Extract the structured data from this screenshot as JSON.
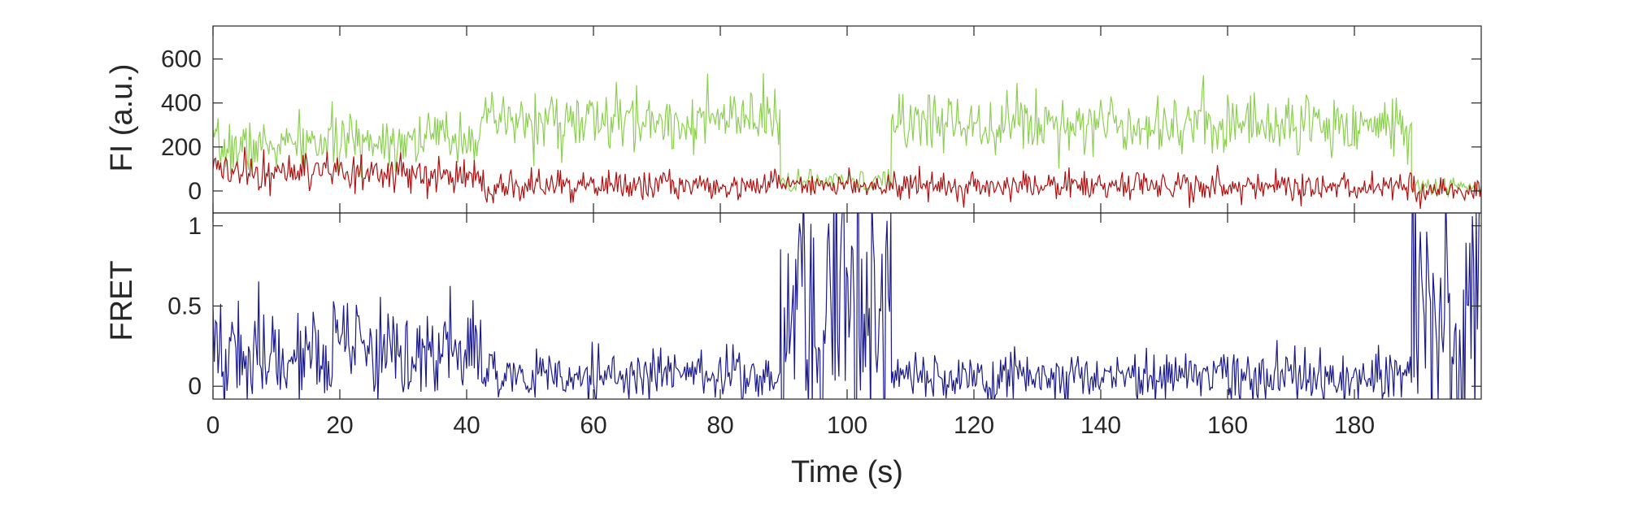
{
  "chart_data": [
    {
      "type": "line",
      "panel": "top",
      "title": "",
      "ylabel": "FI (a.u.)",
      "xlabel": "",
      "xlim": [
        0,
        200
      ],
      "ylim": [
        -100,
        750
      ],
      "yticks": [
        0,
        200,
        400,
        600
      ],
      "grid": false,
      "series": [
        {
          "color": "#8cd050",
          "segments": [
            {
              "t0": 0,
              "t1": 43,
              "mean_start": 190,
              "mean_end": 260,
              "noise": 60
            },
            {
              "t0": 43,
              "t1": 89.5,
              "mean_start": 310,
              "mean_end": 320,
              "noise": 70
            },
            {
              "t0": 89.5,
              "t1": 107,
              "mean_start": 40,
              "mean_end": 40,
              "noise": 25
            },
            {
              "t0": 107,
              "t1": 189,
              "mean_start": 320,
              "mean_end": 300,
              "noise": 70
            },
            {
              "t0": 189,
              "t1": 200,
              "mean_start": 20,
              "mean_end": 20,
              "noise": 20
            }
          ]
        },
        {
          "color": "#b01010",
          "segments": [
            {
              "t0": 0,
              "t1": 43,
              "mean_start": 90,
              "mean_end": 60,
              "noise": 45
            },
            {
              "t0": 43,
              "t1": 89.5,
              "mean_start": 20,
              "mean_end": 30,
              "noise": 35
            },
            {
              "t0": 89.5,
              "t1": 107,
              "mean_start": 30,
              "mean_end": 30,
              "noise": 25
            },
            {
              "t0": 107,
              "t1": 189,
              "mean_start": 25,
              "mean_end": 20,
              "noise": 35
            },
            {
              "t0": 189,
              "t1": 200,
              "mean_start": 0,
              "mean_end": 0,
              "noise": 25
            }
          ]
        }
      ]
    },
    {
      "type": "line",
      "panel": "bottom",
      "title": "",
      "ylabel": "FRET",
      "xlabel": "Time (s)",
      "xlim": [
        0,
        200
      ],
      "ylim": [
        -0.08,
        1.08
      ],
      "yticks": [
        0,
        0.5,
        1
      ],
      "ytick_labels": [
        "0",
        "0.5",
        "1"
      ],
      "xticks": [
        0,
        20,
        40,
        60,
        80,
        100,
        120,
        140,
        160,
        180
      ],
      "grid": false,
      "series": [
        {
          "color": "#1a1a8c",
          "segments": [
            {
              "t0": 0,
              "t1": 43,
              "mean_start": 0.22,
              "mean_end": 0.2,
              "noise": 0.16
            },
            {
              "t0": 43,
              "t1": 89.5,
              "mean_start": 0.06,
              "mean_end": 0.08,
              "noise": 0.08
            },
            {
              "t0": 89.5,
              "t1": 107,
              "mean_start": 0.5,
              "mean_end": 0.5,
              "noise": 0.5
            },
            {
              "t0": 107,
              "t1": 189,
              "mean_start": 0.06,
              "mean_end": 0.06,
              "noise": 0.08
            },
            {
              "t0": 189,
              "t1": 200,
              "mean_start": 0.5,
              "mean_end": 0.5,
              "noise": 0.5
            }
          ]
        }
      ]
    }
  ]
}
